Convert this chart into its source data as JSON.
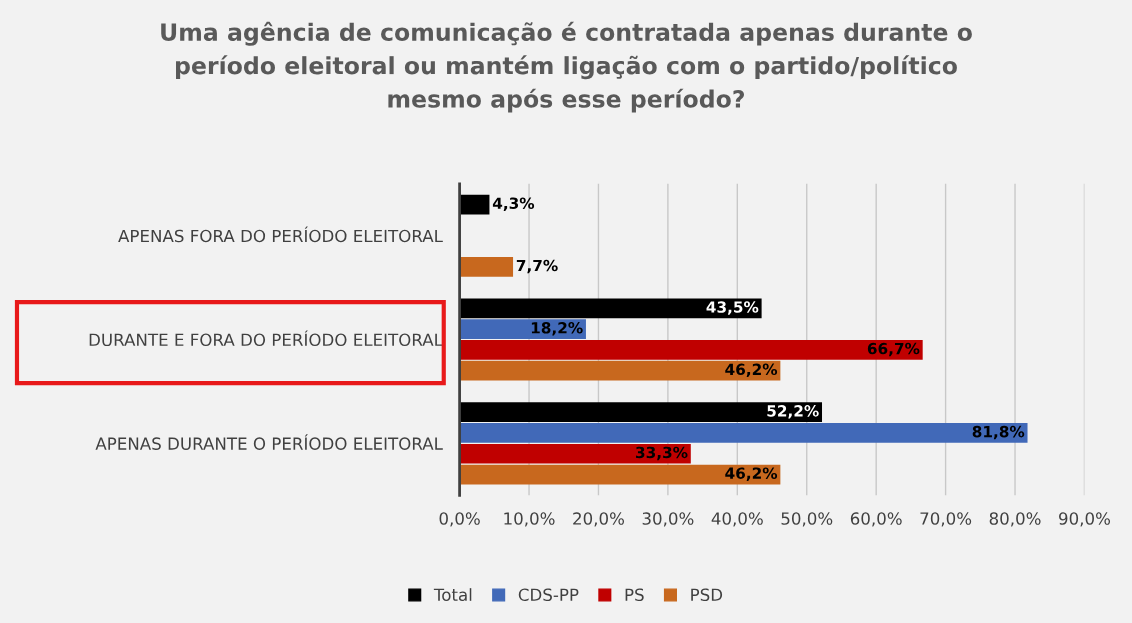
{
  "chart_data": {
    "type": "bar",
    "orientation": "horizontal",
    "title": "Uma agência de comunicação é contratada apenas durante o\nperíodo eleitoral ou mantém ligação com o partido/político\nmesmo após esse período?",
    "categories": [
      "APENAS FORA DO PERÍODO ELEITORAL",
      "DURANTE E FORA DO PERÍODO ELEITORAL",
      "APENAS DURANTE O PERÍODO ELEITORAL"
    ],
    "series": [
      {
        "name": "Total",
        "color": "#000000",
        "values": [
          4.3,
          43.5,
          52.2
        ],
        "value_labels": [
          "4,3%",
          "43,5%",
          "52,2%"
        ]
      },
      {
        "name": "CDS-PP",
        "color": "#4169b8",
        "values": [
          null,
          18.2,
          81.8
        ],
        "value_labels": [
          null,
          "18,2%",
          "81,8%"
        ]
      },
      {
        "name": "PS",
        "color": "#c00000",
        "values": [
          null,
          66.7,
          33.3
        ],
        "value_labels": [
          null,
          "66,7%",
          "33,3%"
        ]
      },
      {
        "name": "PSD",
        "color": "#c8681e",
        "values": [
          7.7,
          46.2,
          46.2
        ],
        "value_labels": [
          "7,7%",
          "46,2%",
          "46,2%"
        ]
      }
    ],
    "xlim": [
      0,
      90
    ],
    "xticks": [
      {
        "value": 0,
        "label": "0,0%"
      },
      {
        "value": 10,
        "label": "10,0%"
      },
      {
        "value": 20,
        "label": "20,0%"
      },
      {
        "value": 30,
        "label": "30,0%"
      },
      {
        "value": 40,
        "label": "40,0%"
      },
      {
        "value": 50,
        "label": "50,0%"
      },
      {
        "value": 60,
        "label": "60,0%"
      },
      {
        "value": 70,
        "label": "70,0%"
      },
      {
        "value": 80,
        "label": "80,0%"
      },
      {
        "value": 90,
        "label": "90,0%"
      }
    ],
    "grid": "x",
    "legend": "bottom"
  }
}
